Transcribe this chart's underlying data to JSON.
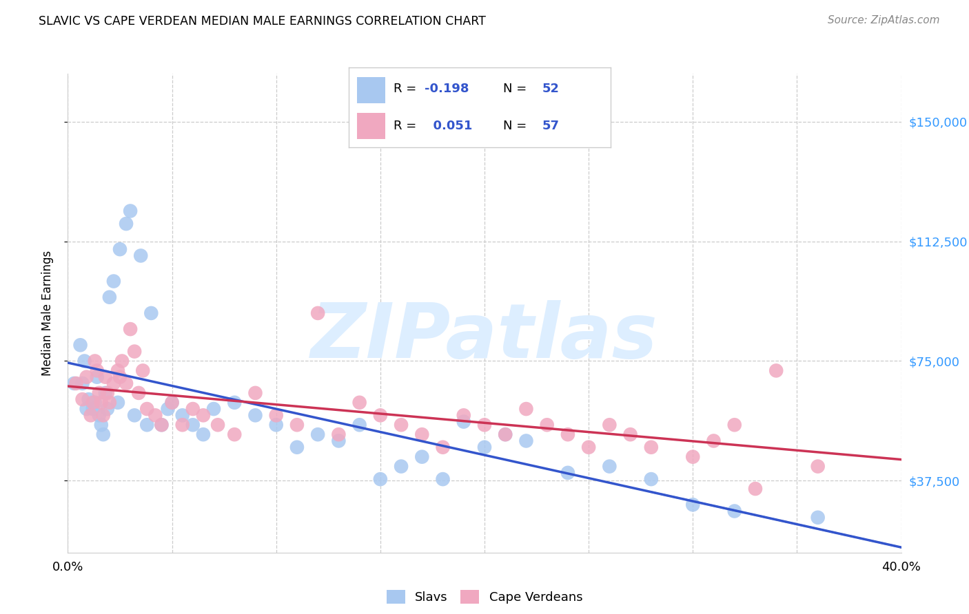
{
  "title": "SLAVIC VS CAPE VERDEAN MEDIAN MALE EARNINGS CORRELATION CHART",
  "source": "Source: ZipAtlas.com",
  "ylabel": "Median Male Earnings",
  "xlim": [
    0.0,
    0.4
  ],
  "ylim": [
    15000,
    165000
  ],
  "yticks": [
    37500,
    75000,
    112500,
    150000
  ],
  "ytick_labels": [
    "$37,500",
    "$75,000",
    "$112,500",
    "$150,000"
  ],
  "xticks": [
    0.0,
    0.05,
    0.1,
    0.15,
    0.2,
    0.25,
    0.3,
    0.35,
    0.4
  ],
  "xtick_labels": [
    "0.0%",
    "",
    "",
    "",
    "",
    "",
    "",
    "",
    "40.0%"
  ],
  "slavs_R": -0.198,
  "slavs_N": 52,
  "cape_R": 0.051,
  "cape_N": 57,
  "slavs_color": "#a8c8f0",
  "cape_color": "#f0a8c0",
  "trend_slavs_color": "#3355cc",
  "trend_cape_color": "#cc3355",
  "watermark_color": "#ddeeff",
  "slavs_x": [
    0.003,
    0.006,
    0.008,
    0.01,
    0.012,
    0.013,
    0.014,
    0.015,
    0.016,
    0.017,
    0.018,
    0.009,
    0.02,
    0.022,
    0.025,
    0.028,
    0.03,
    0.035,
    0.04,
    0.045,
    0.05,
    0.055,
    0.06,
    0.065,
    0.07,
    0.08,
    0.09,
    0.1,
    0.11,
    0.12,
    0.13,
    0.14,
    0.15,
    0.16,
    0.17,
    0.18,
    0.19,
    0.2,
    0.21,
    0.22,
    0.24,
    0.26,
    0.28,
    0.3,
    0.32,
    0.36,
    0.007,
    0.019,
    0.024,
    0.032,
    0.038,
    0.048
  ],
  "slavs_y": [
    68000,
    80000,
    75000,
    63000,
    60000,
    62000,
    70000,
    58000,
    55000,
    52000,
    65000,
    60000,
    95000,
    100000,
    110000,
    118000,
    122000,
    108000,
    90000,
    55000,
    62000,
    58000,
    55000,
    52000,
    60000,
    62000,
    58000,
    55000,
    48000,
    52000,
    50000,
    55000,
    38000,
    42000,
    45000,
    38000,
    56000,
    48000,
    52000,
    50000,
    40000,
    42000,
    38000,
    30000,
    28000,
    26000,
    68000,
    60000,
    62000,
    58000,
    55000,
    60000
  ],
  "cape_x": [
    0.004,
    0.007,
    0.009,
    0.011,
    0.012,
    0.013,
    0.014,
    0.015,
    0.016,
    0.017,
    0.018,
    0.019,
    0.02,
    0.022,
    0.024,
    0.025,
    0.026,
    0.028,
    0.03,
    0.032,
    0.034,
    0.036,
    0.038,
    0.042,
    0.045,
    0.05,
    0.055,
    0.06,
    0.065,
    0.072,
    0.08,
    0.09,
    0.1,
    0.11,
    0.12,
    0.13,
    0.14,
    0.15,
    0.16,
    0.17,
    0.18,
    0.19,
    0.2,
    0.21,
    0.22,
    0.23,
    0.24,
    0.25,
    0.26,
    0.27,
    0.28,
    0.3,
    0.32,
    0.34,
    0.36,
    0.31,
    0.33
  ],
  "cape_y": [
    68000,
    63000,
    70000,
    58000,
    62000,
    75000,
    72000,
    65000,
    62000,
    58000,
    70000,
    65000,
    62000,
    68000,
    72000,
    70000,
    75000,
    68000,
    85000,
    78000,
    65000,
    72000,
    60000,
    58000,
    55000,
    62000,
    55000,
    60000,
    58000,
    55000,
    52000,
    65000,
    58000,
    55000,
    90000,
    52000,
    62000,
    58000,
    55000,
    52000,
    48000,
    58000,
    55000,
    52000,
    60000,
    55000,
    52000,
    48000,
    55000,
    52000,
    48000,
    45000,
    55000,
    72000,
    42000,
    50000,
    35000
  ]
}
